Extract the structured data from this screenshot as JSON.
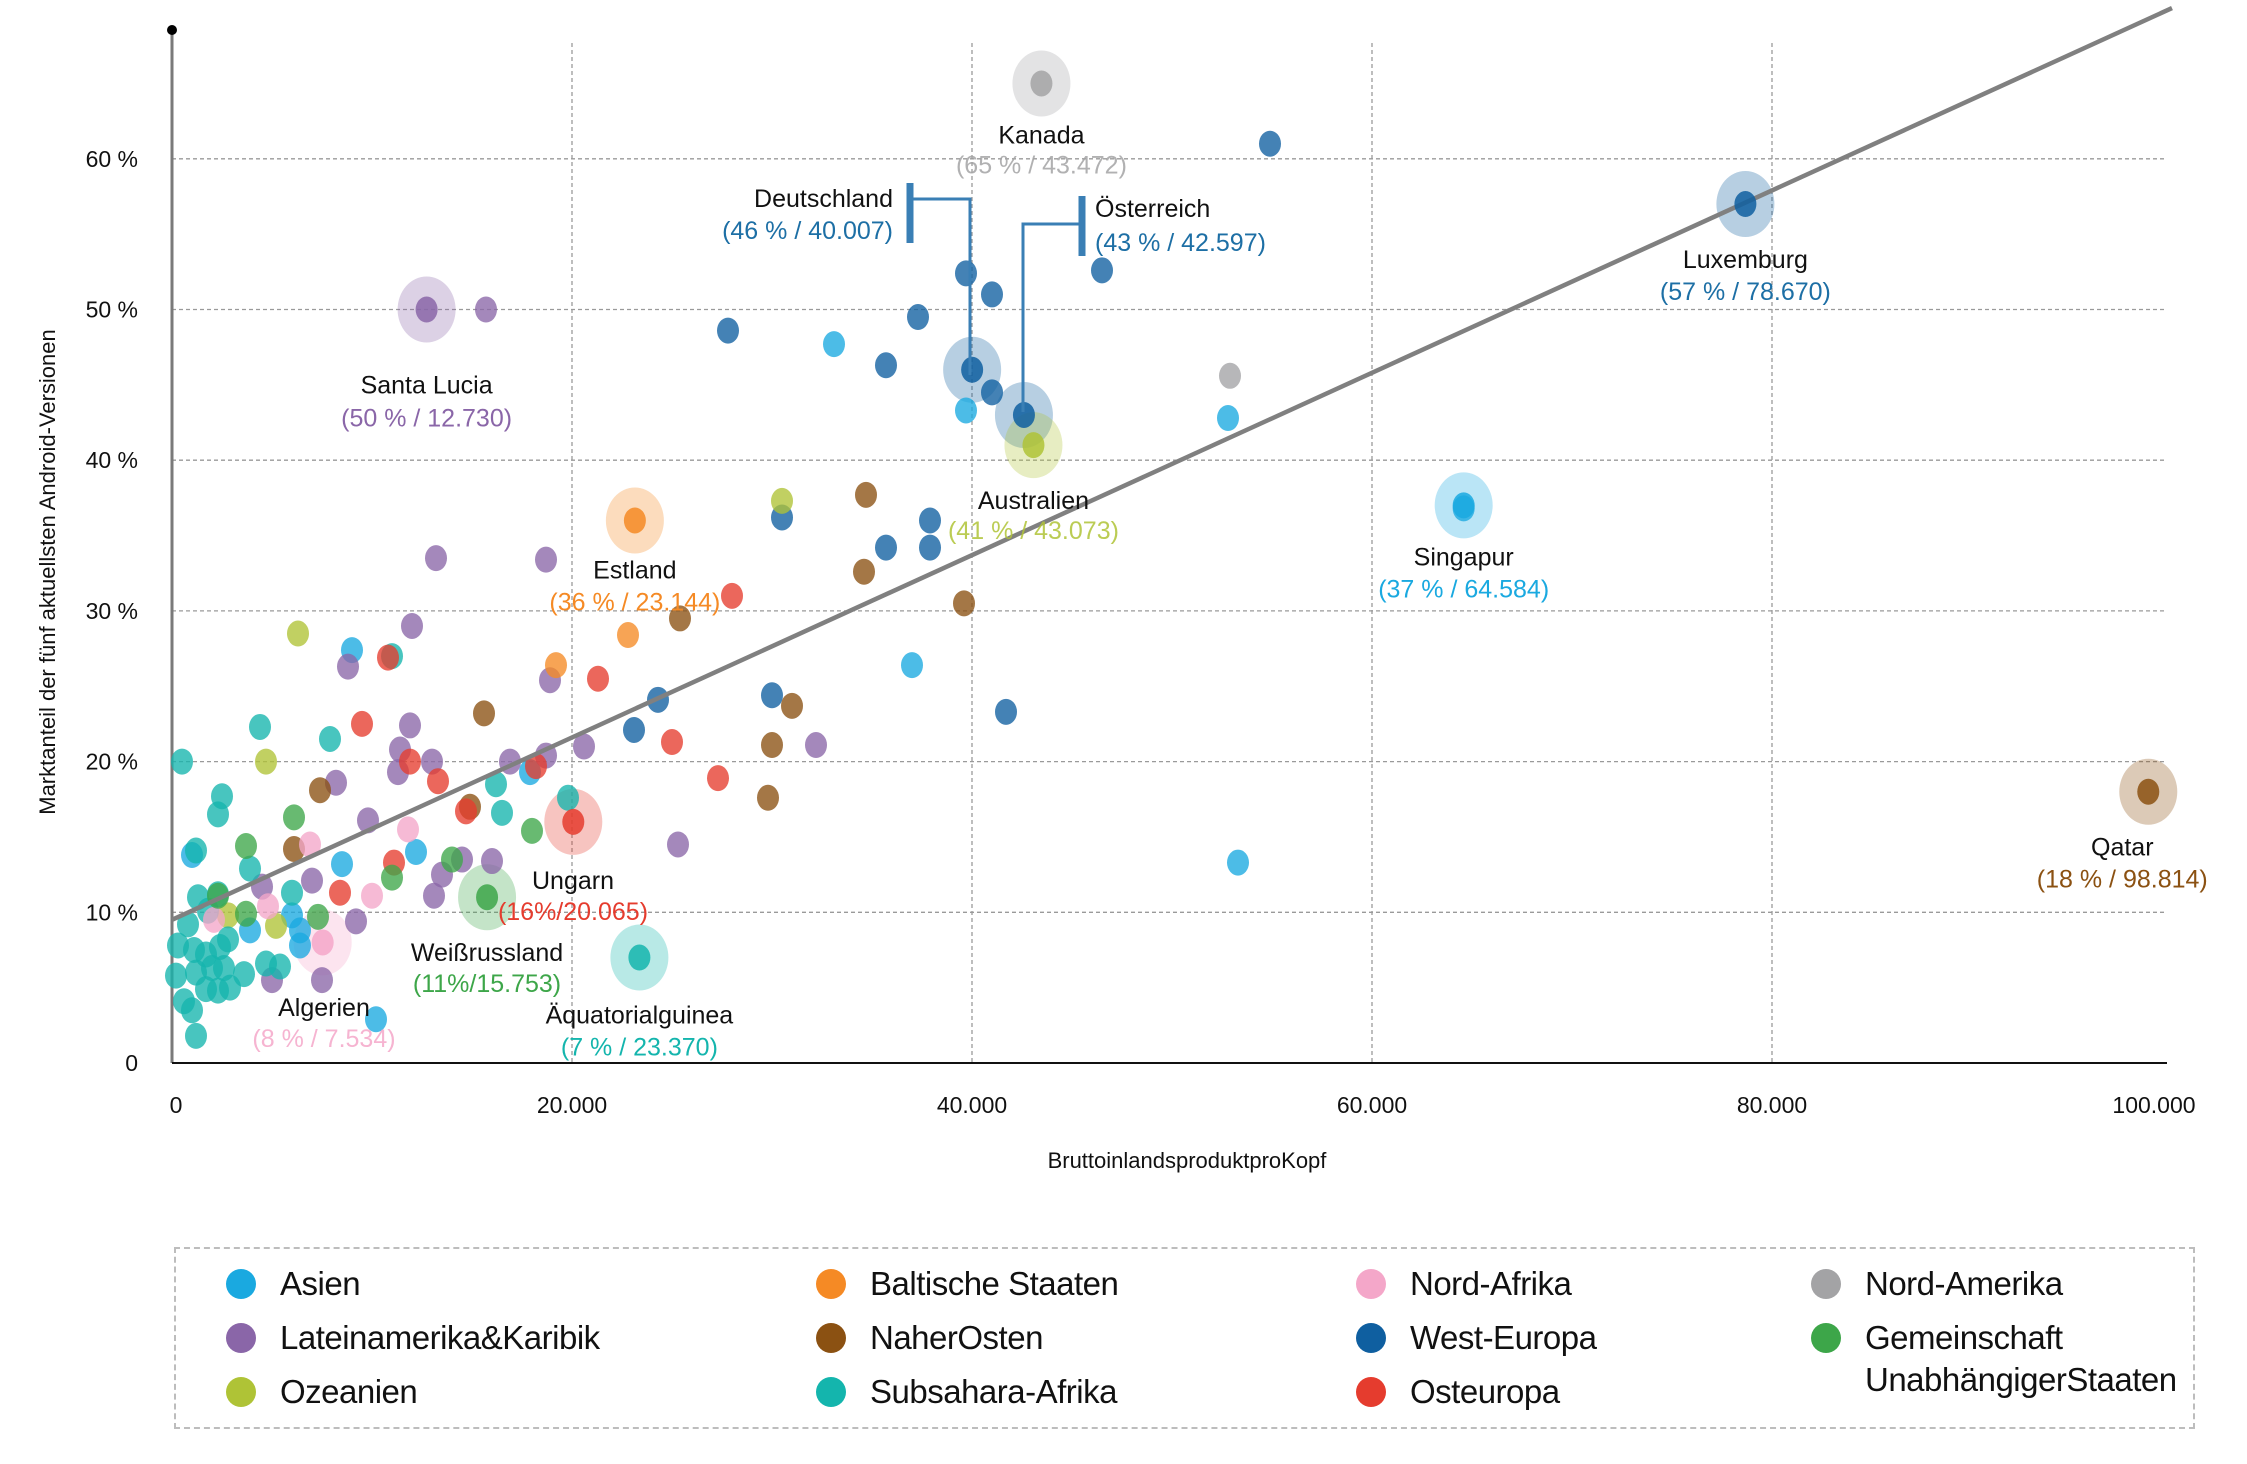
{
  "chart_data": {
    "type": "scatter",
    "title": "",
    "xlabel": "BruttoinlandsproduktproKopf",
    "ylabel": "Marktanteil der fünf aktuellsten Android-Versionen",
    "xlim": [
      0,
      100000
    ],
    "ylim": [
      0,
      70
    ],
    "grid": true,
    "x_ticks": [
      {
        "value": 0,
        "label": "0"
      },
      {
        "value": 20000,
        "label": "20.000"
      },
      {
        "value": 40000,
        "label": "40.000"
      },
      {
        "value": 60000,
        "label": "60.000"
      },
      {
        "value": 80000,
        "label": "80.000"
      },
      {
        "value": 100000,
        "label": "100.000"
      }
    ],
    "y_ticks": [
      {
        "value": 0,
        "label": "0"
      },
      {
        "value": 10,
        "label": "10 %"
      },
      {
        "value": 20,
        "label": "20 %"
      },
      {
        "value": 30,
        "label": "30 %"
      },
      {
        "value": 40,
        "label": "40 %"
      },
      {
        "value": 50,
        "label": "50 %"
      },
      {
        "value": 60,
        "label": "60 %"
      }
    ],
    "trendline": {
      "x": [
        0,
        100000
      ],
      "y": [
        9.5,
        70.0
      ],
      "color": "#808080"
    },
    "legend_position": "bottom",
    "regions": [
      {
        "key": "asien",
        "name": "Asien",
        "color": "#1aa9e0"
      },
      {
        "key": "latam",
        "name": "Lateinamerika&Karibik",
        "color": "#8a66a8"
      },
      {
        "key": "ozeanien",
        "name": "Ozeanien",
        "color": "#afc336"
      },
      {
        "key": "baltikum",
        "name": "Baltische Staaten",
        "color": "#f58a25"
      },
      {
        "key": "nahost",
        "name": "NaherOsten",
        "color": "#8b5112"
      },
      {
        "key": "subsahara",
        "name": "Subsahara-Afrika",
        "color": "#14b5ad"
      },
      {
        "key": "nordafrika",
        "name": "Nord-Afrika",
        "color": "#f4a7c9"
      },
      {
        "key": "westeuropa",
        "name": "West-Europa",
        "color": "#0f5fa0"
      },
      {
        "key": "osteuropa",
        "name": "Osteuropa",
        "color": "#e53c2e"
      },
      {
        "key": "nordamerika",
        "name": "Nord-Amerika",
        "color": "#a3a3a5"
      },
      {
        "key": "gus",
        "name": "Gemeinschaft UnabhängigerStaaten",
        "name_lines": [
          "Gemeinschaft",
          "UnabhängigerStaaten"
        ],
        "color": "#3da649"
      }
    ],
    "series": [
      {
        "region": "westeuropa",
        "points": [
          [
            54900,
            61
          ],
          [
            46500,
            52.6
          ],
          [
            39700,
            52.4
          ],
          [
            41000,
            51
          ],
          [
            37300,
            49.5
          ],
          [
            27800,
            48.6
          ],
          [
            35700,
            46.3
          ],
          [
            41000,
            44.5
          ],
          [
            37900,
            36
          ],
          [
            37900,
            34.2
          ],
          [
            35700,
            34.2
          ],
          [
            30500,
            36.2
          ],
          [
            30000,
            24.4
          ],
          [
            24300,
            24.1
          ],
          [
            23100,
            22.1
          ],
          [
            41700,
            23.3
          ]
        ]
      },
      {
        "region": "asien",
        "points": [
          [
            33100,
            47.7
          ],
          [
            39700,
            43.3
          ],
          [
            52800,
            42.8
          ],
          [
            64584,
            36.8
          ],
          [
            37000,
            26.4
          ],
          [
            53300,
            13.3
          ],
          [
            9000,
            27.4
          ],
          [
            17900,
            19.3
          ],
          [
            12200,
            14
          ],
          [
            8500,
            13.2
          ],
          [
            6400,
            8.8
          ],
          [
            3900,
            8.8
          ],
          [
            1000,
            13.8
          ],
          [
            10200,
            2.9
          ],
          [
            6000,
            9.8
          ],
          [
            6400,
            7.8
          ]
        ]
      },
      {
        "region": "latam",
        "points": [
          [
            15700,
            50
          ],
          [
            13200,
            33.5
          ],
          [
            18700,
            33.4
          ],
          [
            12000,
            29
          ],
          [
            8800,
            26.3
          ],
          [
            18900,
            25.4
          ],
          [
            11900,
            22.4
          ],
          [
            11400,
            20.8
          ],
          [
            18700,
            20.4
          ],
          [
            16900,
            20
          ],
          [
            13000,
            20
          ],
          [
            20600,
            21
          ],
          [
            32200,
            21.1
          ],
          [
            11300,
            19.3
          ],
          [
            8200,
            18.6
          ],
          [
            9800,
            16.1
          ],
          [
            14500,
            13.5
          ],
          [
            13500,
            12.5
          ],
          [
            16000,
            13.4
          ],
          [
            13100,
            11.1
          ],
          [
            7000,
            12.1
          ],
          [
            9200,
            9.4
          ],
          [
            4500,
            11.7
          ],
          [
            5000,
            5.5
          ],
          [
            7500,
            5.5
          ],
          [
            25300,
            14.5
          ]
        ]
      },
      {
        "region": "ozeanien",
        "points": [
          [
            30500,
            37.3
          ],
          [
            6300,
            28.5
          ],
          [
            4700,
            20
          ],
          [
            5200,
            9.1
          ],
          [
            2800,
            9.8
          ]
        ]
      },
      {
        "region": "baltikum",
        "points": [
          [
            19200,
            26.4
          ],
          [
            22800,
            28.4
          ]
        ]
      },
      {
        "region": "nahost",
        "points": [
          [
            34700,
            37.7
          ],
          [
            34600,
            32.6
          ],
          [
            25400,
            29.5
          ],
          [
            39600,
            30.5
          ],
          [
            15600,
            23.2
          ],
          [
            31000,
            23.7
          ],
          [
            30000,
            21.1
          ],
          [
            29800,
            17.6
          ],
          [
            14900,
            17
          ],
          [
            7400,
            18.1
          ],
          [
            6100,
            14.2
          ]
        ]
      },
      {
        "region": "subsahara",
        "points": [
          [
            500,
            20
          ],
          [
            4400,
            22.3
          ],
          [
            7900,
            21.5
          ],
          [
            11000,
            27
          ],
          [
            2300,
            16.5
          ],
          [
            2500,
            17.7
          ],
          [
            16200,
            18.5
          ],
          [
            19800,
            17.6
          ],
          [
            16500,
            16.6
          ],
          [
            3900,
            12.9
          ],
          [
            6000,
            11.3
          ],
          [
            1200,
            14.1
          ],
          [
            800,
            9.2
          ],
          [
            1300,
            11
          ],
          [
            1800,
            10.1
          ],
          [
            2300,
            11.2
          ],
          [
            300,
            7.8
          ],
          [
            1100,
            7.5
          ],
          [
            1700,
            7.2
          ],
          [
            2400,
            7.7
          ],
          [
            2800,
            8.2
          ],
          [
            200,
            5.8
          ],
          [
            1200,
            6
          ],
          [
            2000,
            6.3
          ],
          [
            2600,
            6.3
          ],
          [
            600,
            4.1
          ],
          [
            1700,
            4.9
          ],
          [
            2300,
            4.8
          ],
          [
            2900,
            5
          ],
          [
            3600,
            5.9
          ],
          [
            1000,
            3.5
          ],
          [
            1200,
            1.8
          ],
          [
            4700,
            6.6
          ],
          [
            5400,
            6.4
          ]
        ]
      },
      {
        "region": "nordafrika",
        "points": [
          [
            6900,
            14.5
          ],
          [
            11800,
            15.5
          ],
          [
            10000,
            11.1
          ],
          [
            2100,
            9.5
          ],
          [
            4800,
            10.4
          ]
        ]
      },
      {
        "region": "osteuropa",
        "points": [
          [
            28000,
            31
          ],
          [
            21300,
            25.5
          ],
          [
            9500,
            22.5
          ],
          [
            10800,
            26.9
          ],
          [
            11900,
            20
          ],
          [
            13300,
            18.7
          ],
          [
            25000,
            21.3
          ],
          [
            27300,
            18.9
          ],
          [
            14700,
            16.7
          ],
          [
            18200,
            19.7
          ],
          [
            11100,
            13.3
          ],
          [
            8400,
            11.3
          ]
        ]
      },
      {
        "region": "nordamerika",
        "points": [
          [
            52900,
            45.6
          ]
        ]
      },
      {
        "region": "gus",
        "points": [
          [
            3700,
            14.4
          ],
          [
            6100,
            16.3
          ],
          [
            14000,
            13.5
          ],
          [
            18000,
            15.4
          ],
          [
            11000,
            12.3
          ],
          [
            7300,
            9.7
          ],
          [
            2300,
            11.1
          ],
          [
            3700,
            9.9
          ]
        ]
      }
    ],
    "highlighted": [
      {
        "name": "Kanada",
        "region": "nordamerika",
        "x": 43472,
        "y": 65,
        "value_label": "(65 % / 43.472)"
      },
      {
        "name": "Deutschland",
        "region": "westeuropa",
        "x": 40007,
        "y": 46,
        "value_label": "(46 % / 40.007)"
      },
      {
        "name": "Österreich",
        "region": "westeuropa",
        "x": 42597,
        "y": 43,
        "value_label": "(43 % / 42.597)"
      },
      {
        "name": "Luxemburg",
        "region": "westeuropa",
        "x": 78670,
        "y": 57,
        "value_label": "(57 % / 78.670)"
      },
      {
        "name": "Santa Lucia",
        "region": "latam",
        "x": 12730,
        "y": 50,
        "value_label": "(50 % / 12.730)"
      },
      {
        "name": "Australien",
        "region": "ozeanien",
        "x": 43073,
        "y": 41,
        "value_label": "(41 % / 43.073)"
      },
      {
        "name": "Estland",
        "region": "baltikum",
        "x": 23144,
        "y": 36,
        "value_label": "(36 % / 23.144)"
      },
      {
        "name": "Singapur",
        "region": "asien",
        "x": 64584,
        "y": 37,
        "value_label": "(37 % / 64.584)"
      },
      {
        "name": "Qatar",
        "region": "nahost",
        "x": 98814,
        "y": 18,
        "value_label": "(18 % / 98.814)"
      },
      {
        "name": "Ungarn",
        "region": "osteuropa",
        "x": 20065,
        "y": 16,
        "value_label": "(16%/20.065)"
      },
      {
        "name": "Weißrussland",
        "region": "gus",
        "x": 15753,
        "y": 11,
        "value_label": "(11%/15.753)"
      },
      {
        "name": "Algerien",
        "region": "nordafrika",
        "x": 7534,
        "y": 8,
        "value_label": "(8 % / 7.534)"
      },
      {
        "name": "Äquatorialguinea",
        "region": "subsahara",
        "x": 23370,
        "y": 7,
        "value_label": "(7 % / 23.370)"
      }
    ]
  }
}
